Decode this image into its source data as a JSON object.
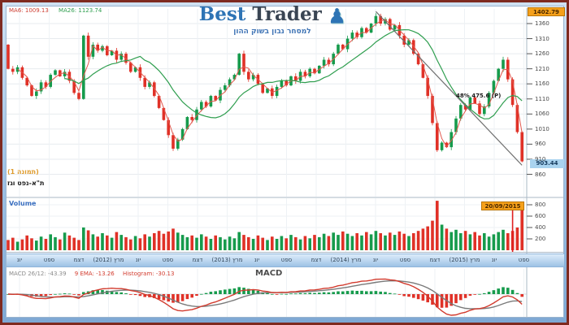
{
  "header": {
    "ma6": "MA6: 1009.13",
    "ma26": "MA26: 1123.74"
  },
  "logo": {
    "best": "Best",
    "trader": "Trader",
    "icon_char": "♟",
    "tagline": "למסחר נבון בשוק ההון"
  },
  "price_axis": {
    "high_label": "1402.79",
    "last_label": "903.44",
    "ticks": [
      1360,
      1310,
      1260,
      1210,
      1160,
      1110,
      1060,
      1010,
      960,
      910,
      860
    ]
  },
  "volume_axis": {
    "ticks": [
      800,
      600,
      400,
      200
    ]
  },
  "volume_panel": {
    "label": "Volume",
    "date_label": "20/09/2015"
  },
  "macd_panel": {
    "h1": "MACD 26/12: -43.39",
    "h2": "9 EMA: -13.26",
    "h3": "Histogram: -30.13",
    "center_label": "MACD"
  },
  "annotations": {
    "fib_label": "48% 475.6 (P)",
    "image_label": "(תמונה 1)",
    "instrument_label": "ת\"א-נפט וגז"
  },
  "colors": {
    "up": "#169b4c",
    "down": "#e03127",
    "ma_fast": "#e2574c",
    "ma_slow": "#2f9e4f",
    "macd_line": "#d23b2e",
    "signal_line": "#7a7a7a",
    "trendline": "#6f6f6f",
    "highlight_orange": "#f5a01a",
    "highlight_blue": "#a9d3ef",
    "marker_red": "#e02020"
  },
  "chart_data": {
    "type": "candlestick",
    "panels": [
      "price+MA6+MA26",
      "volume",
      "MACD(12,26,9)"
    ],
    "x_labels": [
      "יונ",
      "ספט",
      "דצמ",
      "מרץ (2012)",
      "יונ",
      "ספט",
      "דצמ",
      "מרץ (2013)",
      "יונ",
      "ספט",
      "דצמ",
      "מרץ (2014)",
      "יונ",
      "ספט",
      "דצמ",
      "מרץ (2015)",
      "יונ",
      "ספט"
    ],
    "price_range": [
      860,
      1403
    ],
    "volume_range": [
      0,
      900
    ],
    "high_marker": 1402.79,
    "last_price": 903.44,
    "last_date": "20/09/2015",
    "closes": [
      1210,
      1200,
      1215,
      1180,
      1155,
      1120,
      1135,
      1165,
      1150,
      1190,
      1205,
      1185,
      1200,
      1170,
      1130,
      1110,
      1320,
      1250,
      1290,
      1270,
      1285,
      1255,
      1270,
      1240,
      1260,
      1230,
      1200,
      1215,
      1180,
      1150,
      1165,
      1120,
      1080,
      1040,
      990,
      945,
      975,
      1010,
      1050,
      1040,
      1075,
      1100,
      1085,
      1120,
      1105,
      1140,
      1155,
      1175,
      1190,
      1260,
      1200,
      1175,
      1190,
      1160,
      1130,
      1145,
      1120,
      1150,
      1170,
      1155,
      1185,
      1170,
      1200,
      1185,
      1210,
      1195,
      1220,
      1240,
      1225,
      1260,
      1290,
      1275,
      1310,
      1330,
      1315,
      1345,
      1330,
      1360,
      1385,
      1360,
      1375,
      1340,
      1355,
      1320,
      1290,
      1305,
      1260,
      1225,
      1180,
      1120,
      1030,
      940,
      965,
      950,
      1000,
      1045,
      1090,
      1075,
      1115,
      1095,
      1060,
      1085,
      1130,
      1170,
      1210,
      1240,
      1175,
      1090,
      1000,
      903
    ],
    "first_open": 1290,
    "volumes": [
      180,
      220,
      150,
      190,
      260,
      210,
      170,
      240,
      200,
      280,
      230,
      190,
      310,
      260,
      220,
      180,
      400,
      350,
      280,
      240,
      300,
      260,
      220,
      320,
      270,
      230,
      190,
      250,
      210,
      280,
      240,
      300,
      340,
      290,
      330,
      380,
      310,
      270,
      230,
      260,
      220,
      280,
      240,
      200,
      260,
      230,
      190,
      240,
      210,
      320,
      270,
      230,
      200,
      260,
      220,
      180,
      240,
      200,
      250,
      210,
      270,
      230,
      190,
      250,
      210,
      270,
      230,
      290,
      250,
      310,
      270,
      330,
      290,
      250,
      300,
      260,
      320,
      280,
      340,
      300,
      260,
      310,
      270,
      330,
      290,
      250,
      300,
      340,
      380,
      420,
      520,
      870,
      450,
      380,
      320,
      360,
      300,
      340,
      280,
      320,
      260,
      300,
      240,
      280,
      320,
      360,
      300,
      340,
      400,
      740
    ],
    "overlays": {
      "ma_fast_period": 3,
      "ma_slow_period": 13,
      "trendline": {
        "from_index": 78,
        "from_price": 1400,
        "to_index": 109,
        "to_price": 890
      }
    },
    "macd_settings": {
      "fast": 12,
      "slow": 26,
      "signal": 9,
      "last_macd": -43.39,
      "last_signal": -13.26,
      "last_histogram": -30.13
    }
  }
}
